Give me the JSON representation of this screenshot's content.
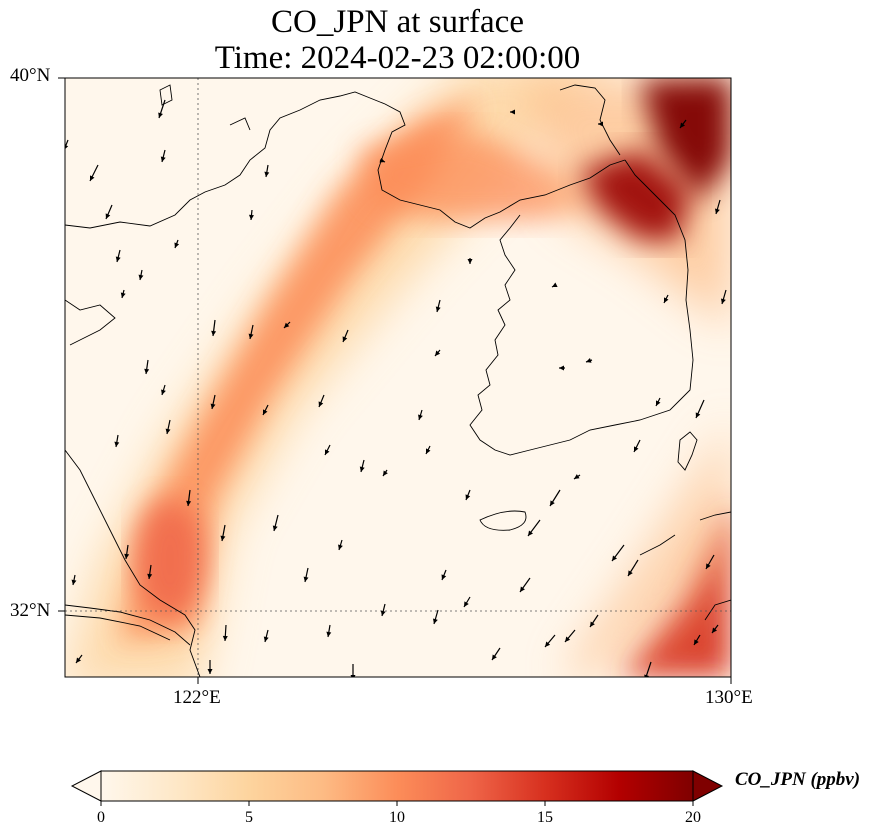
{
  "title": {
    "line1": "CO_JPN at surface",
    "line2": "Time: 2024-02-23 02:00:00"
  },
  "map": {
    "lon_range": [
      120,
      130
    ],
    "lat_range": [
      31,
      40
    ],
    "lon_ticks": [
      "122°E",
      "130°E"
    ],
    "lat_ticks": [
      "40°N",
      "32°N"
    ],
    "gridlines": "dotted"
  },
  "colorbar": {
    "label": "CO_JPN (ppbv)",
    "ticks": [
      "0",
      "5",
      "10",
      "15",
      "20"
    ],
    "range": [
      0,
      20
    ],
    "extend": "both",
    "colormap": "OrRd",
    "colors": [
      "#fff7ec",
      "#fee8c8",
      "#fdd49e",
      "#fdbb84",
      "#fc8d59",
      "#ef6548",
      "#d7301f",
      "#b30000",
      "#7f0000"
    ]
  }
}
